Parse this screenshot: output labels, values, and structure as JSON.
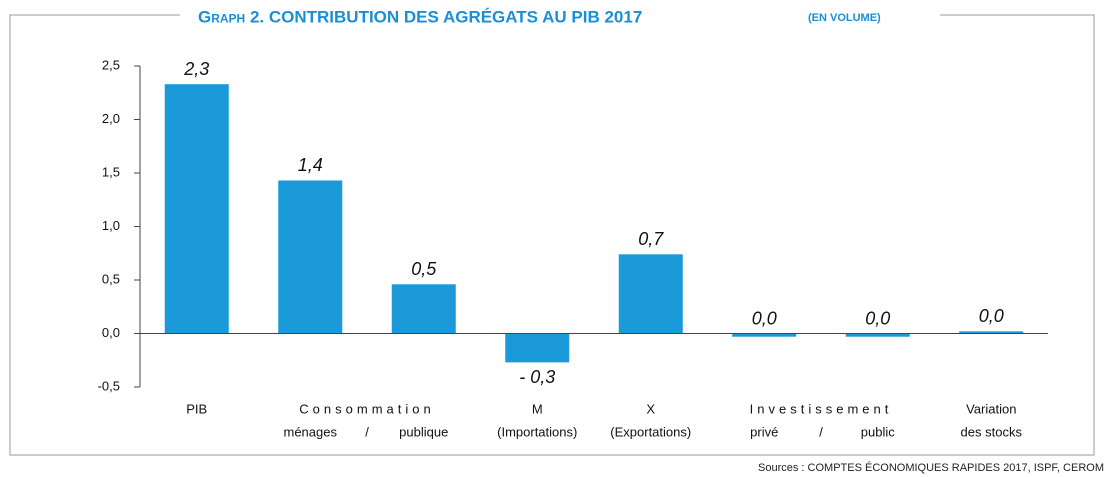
{
  "chart_data": {
    "type": "bar",
    "title": "Graph 2. CONTRIBUTION DES AGRÉGATS AU PIB 2017",
    "subtitle": "(EN VOLUME)",
    "source": "Sources : COMPTES ÉCONOMIQUES RAPIDES 2017, ISPF, CEROM",
    "categories": [
      "PIB",
      "ménages",
      "publique",
      "(Importations)",
      "(Exportations)",
      "privé",
      "public",
      "des stocks"
    ],
    "category_groups": [
      {
        "label": "Consommation",
        "start": 1,
        "end": 2,
        "separator": "/",
        "spaced": true
      },
      {
        "label": "M",
        "start": 3,
        "end": 3
      },
      {
        "label": "X",
        "start": 4,
        "end": 4
      },
      {
        "label": "Investissement",
        "start": 5,
        "end": 6,
        "separator": "/",
        "spaced": true
      },
      {
        "label": "Variation",
        "start": 7,
        "end": 7
      }
    ],
    "values": [
      2.33,
      1.43,
      0.46,
      -0.27,
      0.74,
      -0.03,
      -0.03,
      0.02
    ],
    "value_labels": [
      "2,3",
      "1,4",
      "0,5",
      "- 0,3",
      "0,7",
      "0,0",
      "0,0",
      "0,0"
    ],
    "color": "#1a9ad9",
    "ylim": [
      -0.5,
      2.5
    ],
    "yticks": [
      {
        "value": -0.5,
        "label": "-0,5"
      },
      {
        "value": 0,
        "label": "0,0"
      },
      {
        "value": 0.5,
        "label": "0,5"
      },
      {
        "value": 1,
        "label": "1,0"
      },
      {
        "value": 1.5,
        "label": "1,5"
      },
      {
        "value": 2,
        "label": "2,0"
      },
      {
        "value": 2.5,
        "label": "2,5"
      }
    ],
    "grid": false
  }
}
